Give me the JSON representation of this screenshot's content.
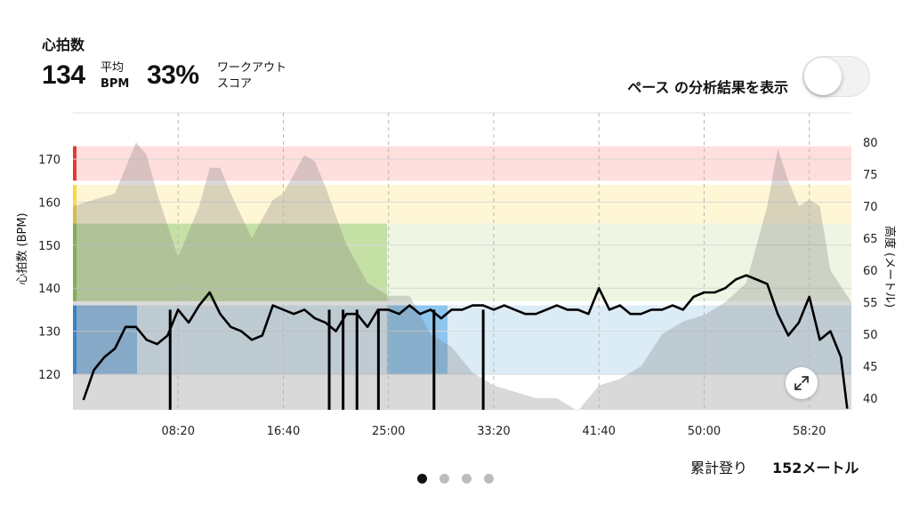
{
  "header": {
    "title": "心拍数",
    "avg_value": "134",
    "avg_label_top": "平均",
    "avg_label_bottom": "BPM",
    "score_value": "33%",
    "score_label_top": "ワークアウト",
    "score_label_bottom": "スコア"
  },
  "toggle": {
    "label": "ペース の分析結果を表示",
    "checked": false
  },
  "axes": {
    "left_label": "心拍数 (BPM)",
    "right_label": "高度 (メートル)",
    "left_ticks": [
      "170",
      "160",
      "150",
      "140",
      "130",
      "120"
    ],
    "right_ticks": [
      "80",
      "75",
      "70",
      "65",
      "60",
      "55",
      "50",
      "45",
      "40"
    ],
    "x_ticks": [
      "08:20",
      "16:40",
      "25:00",
      "33:20",
      "41:40",
      "50:00",
      "58:20"
    ]
  },
  "footer": {
    "label": "累計登り",
    "value": "152メートル"
  },
  "pagination": {
    "count": 4,
    "active": 0
  },
  "icons": {
    "expand": "expand-icon"
  },
  "colors": {
    "zone_red": "#e53935",
    "zone_yellow": "#fdd835",
    "zone_green": "#8bc34a",
    "zone_blue": "#1e88e5",
    "line": "#000000"
  },
  "chart_data": {
    "type": "line",
    "x_unit": "min:sec",
    "xlim": [
      "0:00",
      "61:40"
    ],
    "ylim_left": [
      112,
      174
    ],
    "ylim_right": [
      38,
      82
    ],
    "zones_bpm": [
      {
        "name": "red",
        "range": [
          165,
          173
        ]
      },
      {
        "name": "yellow",
        "range": [
          155,
          164
        ]
      },
      {
        "name": "green",
        "range": [
          137,
          155
        ]
      },
      {
        "name": "blue",
        "range": [
          120,
          136
        ]
      }
    ],
    "series": [
      {
        "axis": "left",
        "x": [
          "0:50",
          "1:40",
          "2:30",
          "3:20",
          "4:10",
          "5:00",
          "5:50",
          "6:40",
          "7:05",
          "7:30",
          "8:20",
          "9:10",
          "10:00",
          "10:50",
          "11:40",
          "12:30",
          "13:20",
          "14:10",
          "15:00",
          "15:50",
          "16:40",
          "17:30",
          "18:20",
          "19:10",
          "20:00",
          "20:50",
          "21:40",
          "22:30",
          "23:20",
          "24:10",
          "25:00",
          "25:50",
          "26:40",
          "27:30",
          "28:20",
          "29:10",
          "30:00",
          "30:50",
          "31:40",
          "32:30",
          "33:20",
          "34:10",
          "35:00",
          "35:50",
          "36:40",
          "37:30",
          "38:20",
          "39:10",
          "40:00",
          "40:50",
          "41:40",
          "42:30",
          "43:20",
          "44:10",
          "45:00",
          "45:50",
          "46:40",
          "47:30",
          "48:20",
          "49:10",
          "50:00",
          "50:50",
          "51:40",
          "52:30",
          "53:20",
          "54:10",
          "55:00",
          "55:50",
          "56:40",
          "57:30",
          "58:20",
          "59:10",
          "60:00",
          "60:50",
          "61:20"
        ],
        "values": [
          114,
          121,
          124,
          126,
          131,
          131,
          128,
          127,
          128,
          129,
          135,
          132,
          136,
          139,
          134,
          131,
          130,
          128,
          129,
          136,
          135,
          134,
          135,
          133,
          132,
          130,
          134,
          134,
          131,
          135,
          135,
          134,
          136,
          134,
          135,
          133,
          135,
          135,
          136,
          136,
          135,
          136,
          135,
          134,
          134,
          135,
          136,
          135,
          135,
          134,
          140,
          135,
          136,
          134,
          134,
          135,
          135,
          136,
          135,
          138,
          139,
          139,
          140,
          142,
          143,
          142,
          141,
          134,
          129,
          132,
          138,
          128,
          130,
          124,
          112
        ]
      },
      {
        "axis": "right",
        "x": [
          "0:00",
          "1:40",
          "3:20",
          "4:10",
          "5:00",
          "5:50",
          "6:40",
          "8:20",
          "10:00",
          "10:50",
          "11:40",
          "12:30",
          "14:10",
          "15:50",
          "16:40",
          "18:20",
          "19:10",
          "20:00",
          "21:40",
          "23:20",
          "25:00",
          "26:40",
          "28:20",
          "30:00",
          "31:40",
          "33:20",
          "35:00",
          "36:40",
          "38:20",
          "40:00",
          "41:40",
          "43:20",
          "45:00",
          "46:40",
          "48:20",
          "50:00",
          "51:40",
          "53:20",
          "55:00",
          "55:50",
          "56:40",
          "57:30",
          "58:20",
          "59:10",
          "60:00",
          "61:40"
        ],
        "values": [
          70,
          71,
          72,
          76,
          80,
          78,
          72,
          62,
          70,
          76,
          76,
          72,
          65,
          71,
          72,
          78,
          77,
          73,
          64,
          58,
          56,
          56,
          50,
          48,
          44,
          42,
          41,
          40,
          40,
          38,
          42,
          43,
          45,
          50,
          52,
          53,
          55,
          58,
          70,
          79,
          74,
          70,
          71,
          70,
          60,
          55
        ]
      }
    ]
  }
}
